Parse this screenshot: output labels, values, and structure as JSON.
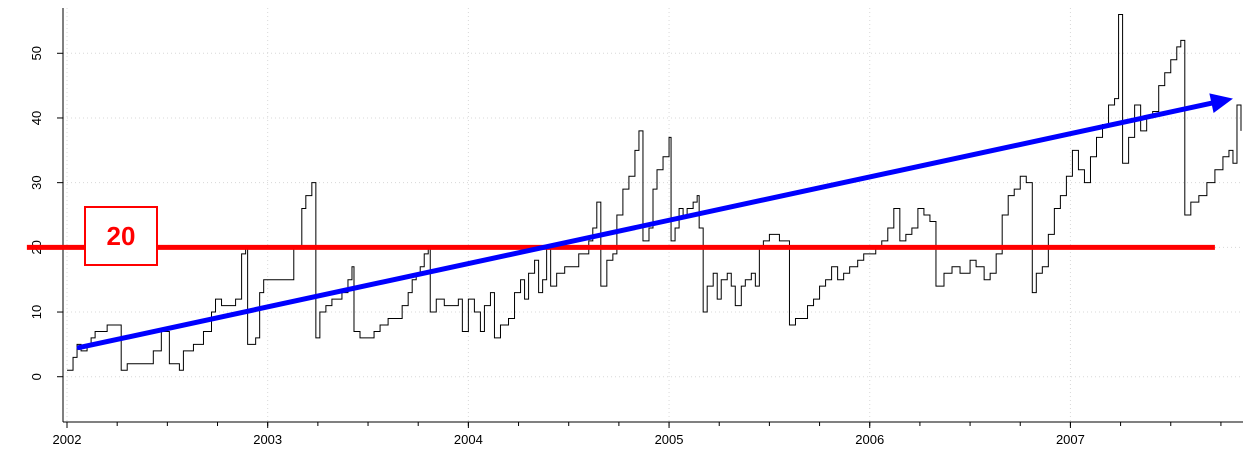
{
  "chart_data": {
    "type": "line",
    "step": true,
    "title": "",
    "xlabel": "",
    "ylabel": "",
    "xlim": [
      2001.98,
      2007.86
    ],
    "ylim": [
      -7,
      57
    ],
    "x_ticks": [
      2002,
      2003,
      2004,
      2005,
      2006,
      2007
    ],
    "x_tick_labels": [
      "2002",
      "2003",
      "2004",
      "2005",
      "2006",
      "2007"
    ],
    "y_ticks": [
      0,
      10,
      20,
      30,
      40,
      50
    ],
    "y_tick_labels": [
      "0",
      "10",
      "20",
      "30",
      "40",
      "50"
    ],
    "grid": true,
    "series": [
      {
        "color": "#000000",
        "points": [
          [
            2002.0,
            1
          ],
          [
            2002.03,
            3
          ],
          [
            2002.05,
            5
          ],
          [
            2002.07,
            4
          ],
          [
            2002.1,
            5
          ],
          [
            2002.12,
            6
          ],
          [
            2002.14,
            7
          ],
          [
            2002.17,
            7
          ],
          [
            2002.2,
            8
          ],
          [
            2002.26,
            8
          ],
          [
            2002.27,
            1
          ],
          [
            2002.3,
            2
          ],
          [
            2002.4,
            2
          ],
          [
            2002.43,
            4
          ],
          [
            2002.47,
            7
          ],
          [
            2002.49,
            7
          ],
          [
            2002.51,
            2
          ],
          [
            2002.55,
            2
          ],
          [
            2002.56,
            1
          ],
          [
            2002.58,
            4
          ],
          [
            2002.63,
            5
          ],
          [
            2002.68,
            7
          ],
          [
            2002.72,
            10
          ],
          [
            2002.74,
            12
          ],
          [
            2002.77,
            11
          ],
          [
            2002.81,
            11
          ],
          [
            2002.84,
            12
          ],
          [
            2002.87,
            19
          ],
          [
            2002.89,
            20
          ],
          [
            2002.9,
            5
          ],
          [
            2002.94,
            6
          ],
          [
            2002.96,
            13
          ],
          [
            2002.98,
            15
          ],
          [
            2003.05,
            15
          ],
          [
            2003.09,
            15
          ],
          [
            2003.13,
            20
          ],
          [
            2003.17,
            26
          ],
          [
            2003.19,
            28
          ],
          [
            2003.22,
            30
          ],
          [
            2003.24,
            6
          ],
          [
            2003.26,
            10
          ],
          [
            2003.29,
            11
          ],
          [
            2003.32,
            12
          ],
          [
            2003.37,
            13
          ],
          [
            2003.4,
            15
          ],
          [
            2003.42,
            17
          ],
          [
            2003.43,
            7
          ],
          [
            2003.46,
            6
          ],
          [
            2003.5,
            6
          ],
          [
            2003.53,
            7
          ],
          [
            2003.56,
            8
          ],
          [
            2003.6,
            9
          ],
          [
            2003.64,
            9
          ],
          [
            2003.67,
            11
          ],
          [
            2003.7,
            13
          ],
          [
            2003.72,
            15
          ],
          [
            2003.74,
            16
          ],
          [
            2003.76,
            17
          ],
          [
            2003.78,
            19
          ],
          [
            2003.8,
            20
          ],
          [
            2003.81,
            10
          ],
          [
            2003.84,
            12
          ],
          [
            2003.88,
            11
          ],
          [
            2003.92,
            11
          ],
          [
            2003.95,
            12
          ],
          [
            2003.97,
            7
          ],
          [
            2004.0,
            12
          ],
          [
            2004.03,
            10
          ],
          [
            2004.06,
            7
          ],
          [
            2004.08,
            11
          ],
          [
            2004.11,
            13
          ],
          [
            2004.13,
            6
          ],
          [
            2004.16,
            8
          ],
          [
            2004.2,
            9
          ],
          [
            2004.23,
            13
          ],
          [
            2004.26,
            15
          ],
          [
            2004.28,
            12
          ],
          [
            2004.3,
            16
          ],
          [
            2004.33,
            18
          ],
          [
            2004.35,
            13
          ],
          [
            2004.37,
            15
          ],
          [
            2004.39,
            20
          ],
          [
            2004.41,
            14
          ],
          [
            2004.44,
            16
          ],
          [
            2004.48,
            17
          ],
          [
            2004.52,
            17
          ],
          [
            2004.55,
            19
          ],
          [
            2004.58,
            19
          ],
          [
            2004.6,
            21
          ],
          [
            2004.62,
            23
          ],
          [
            2004.64,
            27
          ],
          [
            2004.66,
            14
          ],
          [
            2004.69,
            18
          ],
          [
            2004.72,
            19
          ],
          [
            2004.74,
            25
          ],
          [
            2004.77,
            29
          ],
          [
            2004.8,
            31
          ],
          [
            2004.83,
            35
          ],
          [
            2004.85,
            38
          ],
          [
            2004.87,
            21
          ],
          [
            2004.9,
            23
          ],
          [
            2004.92,
            29
          ],
          [
            2004.94,
            32
          ],
          [
            2004.97,
            34
          ],
          [
            2005.0,
            37
          ],
          [
            2005.01,
            21
          ],
          [
            2005.03,
            23
          ],
          [
            2005.05,
            26
          ],
          [
            2005.07,
            25
          ],
          [
            2005.09,
            26
          ],
          [
            2005.12,
            27
          ],
          [
            2005.14,
            28
          ],
          [
            2005.15,
            23
          ],
          [
            2005.17,
            10
          ],
          [
            2005.19,
            14
          ],
          [
            2005.22,
            16
          ],
          [
            2005.24,
            12
          ],
          [
            2005.26,
            15
          ],
          [
            2005.29,
            16
          ],
          [
            2005.31,
            14
          ],
          [
            2005.33,
            11
          ],
          [
            2005.36,
            14
          ],
          [
            2005.38,
            15
          ],
          [
            2005.41,
            16
          ],
          [
            2005.43,
            14
          ],
          [
            2005.45,
            20
          ],
          [
            2005.47,
            21
          ],
          [
            2005.5,
            22
          ],
          [
            2005.55,
            21
          ],
          [
            2005.6,
            8
          ],
          [
            2005.63,
            9
          ],
          [
            2005.66,
            9
          ],
          [
            2005.69,
            11
          ],
          [
            2005.72,
            12
          ],
          [
            2005.75,
            14
          ],
          [
            2005.78,
            15
          ],
          [
            2005.81,
            17
          ],
          [
            2005.84,
            15
          ],
          [
            2005.87,
            16
          ],
          [
            2005.9,
            17
          ],
          [
            2005.94,
            18
          ],
          [
            2005.97,
            19
          ],
          [
            2006.0,
            19
          ],
          [
            2006.03,
            20
          ],
          [
            2006.06,
            21
          ],
          [
            2006.09,
            23
          ],
          [
            2006.12,
            26
          ],
          [
            2006.15,
            21
          ],
          [
            2006.18,
            22
          ],
          [
            2006.21,
            23
          ],
          [
            2006.24,
            26
          ],
          [
            2006.27,
            25
          ],
          [
            2006.3,
            24
          ],
          [
            2006.33,
            14
          ],
          [
            2006.37,
            16
          ],
          [
            2006.41,
            17
          ],
          [
            2006.45,
            16
          ],
          [
            2006.5,
            18
          ],
          [
            2006.53,
            17
          ],
          [
            2006.57,
            15
          ],
          [
            2006.6,
            16
          ],
          [
            2006.63,
            19
          ],
          [
            2006.66,
            25
          ],
          [
            2006.69,
            28
          ],
          [
            2006.72,
            29
          ],
          [
            2006.75,
            31
          ],
          [
            2006.78,
            30
          ],
          [
            2006.81,
            13
          ],
          [
            2006.83,
            16
          ],
          [
            2006.86,
            17
          ],
          [
            2006.89,
            22
          ],
          [
            2006.92,
            26
          ],
          [
            2006.95,
            28
          ],
          [
            2006.98,
            31
          ],
          [
            2007.01,
            35
          ],
          [
            2007.04,
            32
          ],
          [
            2007.07,
            30
          ],
          [
            2007.1,
            34
          ],
          [
            2007.13,
            37
          ],
          [
            2007.16,
            39
          ],
          [
            2007.19,
            42
          ],
          [
            2007.22,
            43
          ],
          [
            2007.24,
            56
          ],
          [
            2007.26,
            33
          ],
          [
            2007.29,
            37
          ],
          [
            2007.32,
            42
          ],
          [
            2007.35,
            38
          ],
          [
            2007.38,
            40
          ],
          [
            2007.41,
            41
          ],
          [
            2007.44,
            45
          ],
          [
            2007.47,
            47
          ],
          [
            2007.5,
            49
          ],
          [
            2007.53,
            51
          ],
          [
            2007.55,
            52
          ],
          [
            2007.57,
            25
          ],
          [
            2007.6,
            27
          ],
          [
            2007.64,
            28
          ],
          [
            2007.68,
            30
          ],
          [
            2007.72,
            32
          ],
          [
            2007.76,
            34
          ],
          [
            2007.79,
            35
          ],
          [
            2007.81,
            33
          ],
          [
            2007.83,
            42
          ],
          [
            2007.85,
            38
          ]
        ]
      }
    ],
    "annotations": [
      {
        "kind": "hline",
        "y": 20,
        "x_range": [
          2001.8,
          2007.72
        ],
        "color": "#ff0000"
      },
      {
        "kind": "arrow",
        "from": [
          2002.06,
          4.5
        ],
        "to": [
          2007.81,
          43
        ],
        "color": "#0000ff"
      },
      {
        "kind": "label",
        "text": "20",
        "color": "#ff0000"
      }
    ]
  }
}
